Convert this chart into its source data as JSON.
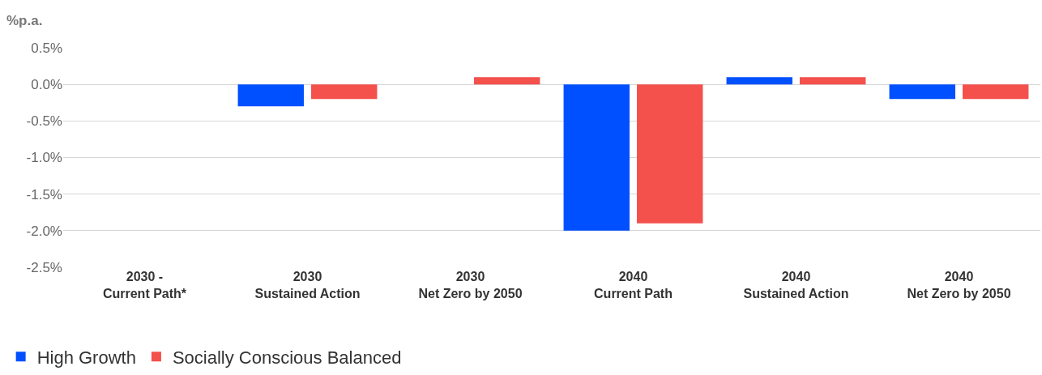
{
  "chart_data": {
    "type": "bar",
    "ylabel": "%p.a.",
    "categories": [
      "2030 -\nCurrent Path*",
      "2030\nSustained Action",
      "2030\nNet Zero by 2050",
      "2040\nCurrent Path",
      "2040\nSustained Action",
      "2040\nNet Zero by 2050"
    ],
    "series": [
      {
        "name": "High Growth",
        "color": "#0050ff",
        "values": [
          0,
          -0.3,
          0,
          -2.0,
          0.1,
          -0.2
        ]
      },
      {
        "name": "Socially Conscious Balanced",
        "color": "#f4504c",
        "values": [
          0,
          -0.2,
          0.1,
          -1.9,
          0.1,
          -0.2
        ]
      }
    ],
    "ylim": [
      -2.5,
      0.5
    ],
    "yticks": [
      {
        "value": 0.5,
        "label": "0.5%"
      },
      {
        "value": 0,
        "label": "0.0%"
      },
      {
        "value": -0.5,
        "label": "-0.5%"
      },
      {
        "value": -1,
        "label": "-1.0%"
      },
      {
        "value": -1.5,
        "label": "-1.5%"
      },
      {
        "value": -2,
        "label": "-2.0%"
      },
      {
        "value": -2.5,
        "label": "-2.5%"
      }
    ],
    "grid": "y",
    "legend": "bottom left"
  }
}
